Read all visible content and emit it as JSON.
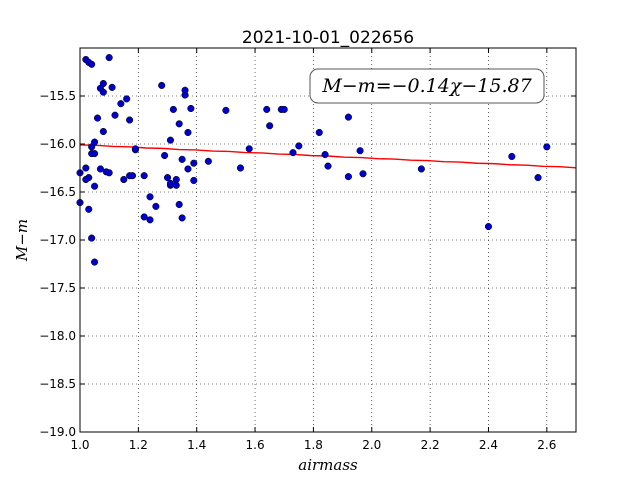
{
  "chart_data": {
    "type": "scatter",
    "title": "2021-10-01_022656",
    "xlabel": "airmass",
    "ylabel": "M−m",
    "annotation": "M−m=−0.14χ−15.87",
    "xlim": [
      1.0,
      2.7
    ],
    "ylim": [
      -19.0,
      -15.0
    ],
    "y_inverted": true,
    "grid": true,
    "xticks": [
      "1.0",
      "1.2",
      "1.4",
      "1.6",
      "1.8",
      "2.0",
      "2.2",
      "2.4",
      "2.6"
    ],
    "yticks": [
      "−15.5",
      "−16.0",
      "−16.5",
      "−17.0",
      "−17.5",
      "−18.0",
      "−18.5",
      "−19.0"
    ],
    "colors": {
      "points": "#0000cc",
      "fit": "#ff0000"
    },
    "fit_line": {
      "slope": -0.14,
      "intercept": -15.87,
      "x_range": [
        1.0,
        2.7
      ]
    },
    "series": [
      {
        "points": [
          {
            "x": 1.0,
            "y": -16.3
          },
          {
            "x": 1.0,
            "y": -16.61
          },
          {
            "x": 1.02,
            "y": -15.12
          },
          {
            "x": 1.03,
            "y": -15.15
          },
          {
            "x": 1.04,
            "y": -15.17
          },
          {
            "x": 1.02,
            "y": -16.25
          },
          {
            "x": 1.03,
            "y": -16.35
          },
          {
            "x": 1.02,
            "y": -16.37
          },
          {
            "x": 1.04,
            "y": -16.1
          },
          {
            "x": 1.04,
            "y": -16.03
          },
          {
            "x": 1.05,
            "y": -15.98
          },
          {
            "x": 1.05,
            "y": -16.1
          },
          {
            "x": 1.03,
            "y": -16.68
          },
          {
            "x": 1.05,
            "y": -16.44
          },
          {
            "x": 1.04,
            "y": -16.98
          },
          {
            "x": 1.05,
            "y": -17.23
          },
          {
            "x": 1.06,
            "y": -15.73
          },
          {
            "x": 1.07,
            "y": -15.42
          },
          {
            "x": 1.08,
            "y": -15.37
          },
          {
            "x": 1.08,
            "y": -15.46
          },
          {
            "x": 1.08,
            "y": -15.87
          },
          {
            "x": 1.07,
            "y": -16.26
          },
          {
            "x": 1.09,
            "y": -16.29
          },
          {
            "x": 1.1,
            "y": -16.3
          },
          {
            "x": 1.1,
            "y": -15.1
          },
          {
            "x": 1.11,
            "y": -15.41
          },
          {
            "x": 1.12,
            "y": -15.7
          },
          {
            "x": 1.14,
            "y": -15.58
          },
          {
            "x": 1.15,
            "y": -16.37
          },
          {
            "x": 1.16,
            "y": -15.53
          },
          {
            "x": 1.17,
            "y": -16.33
          },
          {
            "x": 1.17,
            "y": -15.75
          },
          {
            "x": 1.18,
            "y": -16.33
          },
          {
            "x": 1.19,
            "y": -16.06
          },
          {
            "x": 1.19,
            "y": -16.05
          },
          {
            "x": 1.22,
            "y": -16.33
          },
          {
            "x": 1.22,
            "y": -16.76
          },
          {
            "x": 1.24,
            "y": -16.55
          },
          {
            "x": 1.24,
            "y": -16.79
          },
          {
            "x": 1.26,
            "y": -16.65
          },
          {
            "x": 1.28,
            "y": -15.39
          },
          {
            "x": 1.29,
            "y": -16.12
          },
          {
            "x": 1.3,
            "y": -16.35
          },
          {
            "x": 1.31,
            "y": -16.43
          },
          {
            "x": 1.31,
            "y": -16.41
          },
          {
            "x": 1.31,
            "y": -15.96
          },
          {
            "x": 1.32,
            "y": -15.64
          },
          {
            "x": 1.33,
            "y": -16.37
          },
          {
            "x": 1.33,
            "y": -16.43
          },
          {
            "x": 1.34,
            "y": -15.79
          },
          {
            "x": 1.34,
            "y": -16.63
          },
          {
            "x": 1.35,
            "y": -16.77
          },
          {
            "x": 1.35,
            "y": -16.16
          },
          {
            "x": 1.36,
            "y": -15.44
          },
          {
            "x": 1.36,
            "y": -15.49
          },
          {
            "x": 1.37,
            "y": -16.26
          },
          {
            "x": 1.37,
            "y": -15.88
          },
          {
            "x": 1.38,
            "y": -15.63
          },
          {
            "x": 1.39,
            "y": -16.2
          },
          {
            "x": 1.39,
            "y": -16.38
          },
          {
            "x": 1.44,
            "y": -16.18
          },
          {
            "x": 1.5,
            "y": -15.65
          },
          {
            "x": 1.55,
            "y": -16.25
          },
          {
            "x": 1.58,
            "y": -16.05
          },
          {
            "x": 1.64,
            "y": -15.64
          },
          {
            "x": 1.65,
            "y": -15.81
          },
          {
            "x": 1.69,
            "y": -15.64
          },
          {
            "x": 1.7,
            "y": -15.64
          },
          {
            "x": 1.73,
            "y": -16.09
          },
          {
            "x": 1.75,
            "y": -16.02
          },
          {
            "x": 1.82,
            "y": -15.88
          },
          {
            "x": 1.84,
            "y": -16.11
          },
          {
            "x": 1.85,
            "y": -16.23
          },
          {
            "x": 1.92,
            "y": -15.72
          },
          {
            "x": 1.92,
            "y": -16.34
          },
          {
            "x": 1.96,
            "y": -16.07
          },
          {
            "x": 1.97,
            "y": -16.31
          },
          {
            "x": 2.17,
            "y": -16.26
          },
          {
            "x": 2.4,
            "y": -16.86
          },
          {
            "x": 2.48,
            "y": -16.13
          },
          {
            "x": 2.57,
            "y": -16.35
          },
          {
            "x": 2.6,
            "y": -16.03
          }
        ]
      }
    ]
  }
}
